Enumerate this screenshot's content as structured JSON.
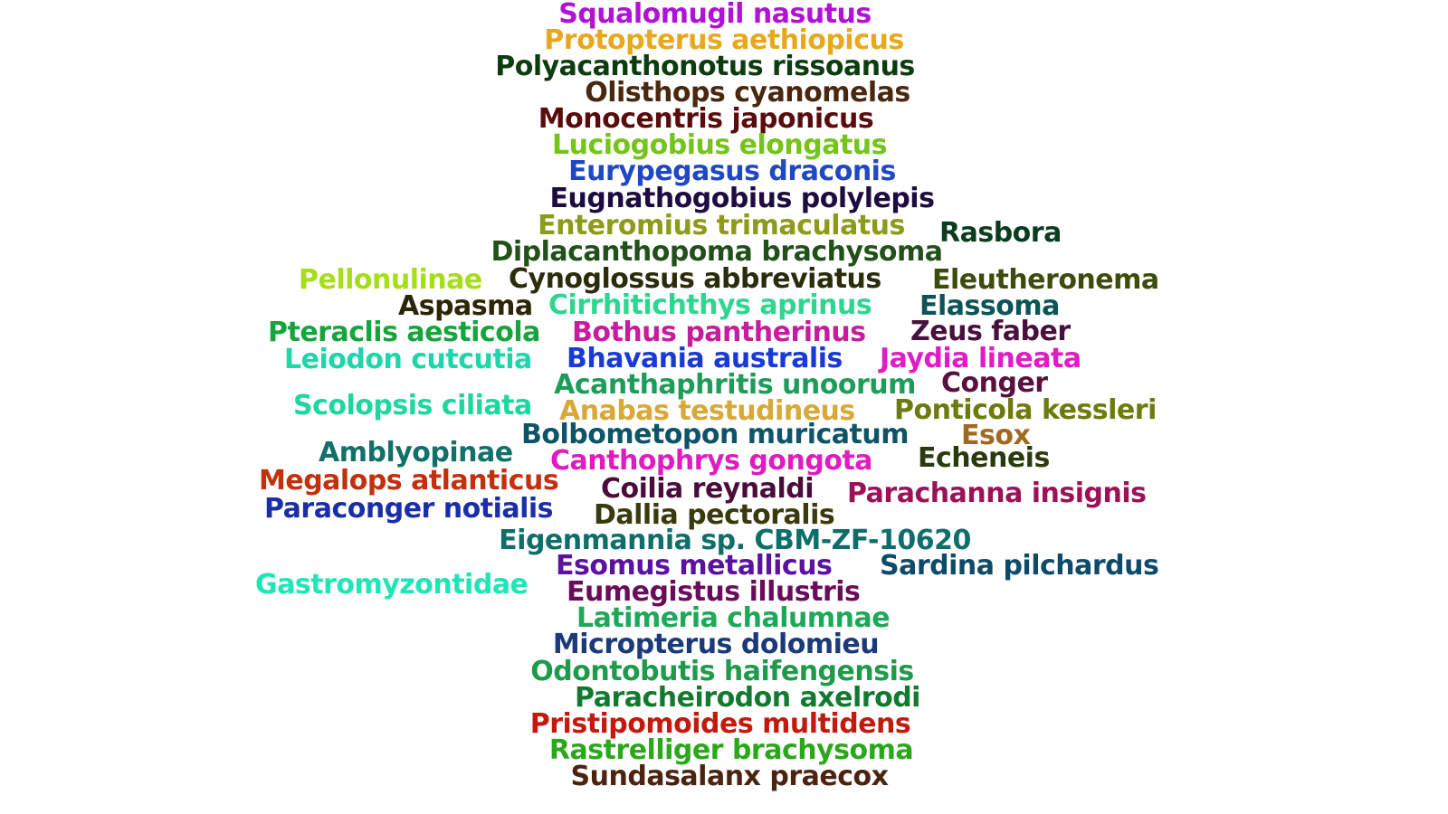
{
  "words": [
    {
      "text": "Squalomugil nasutus",
      "color": "#b012d6"
    },
    {
      "text": "Protopterus aethiopicus",
      "color": "#e8a81e"
    },
    {
      "text": "Polyacanthonotus rissoanus",
      "color": "#0b3d0e"
    },
    {
      "text": "Olisthops cyanomelas",
      "color": "#4a2810"
    },
    {
      "text": "Monocentris japonicus",
      "color": "#5a0c0c"
    },
    {
      "text": "Luciogobius elongatus",
      "color": "#74c41a"
    },
    {
      "text": "Eurypegasus draconis",
      "color": "#2048c2"
    },
    {
      "text": "Eugnathogobius polylepis",
      "color": "#1e0c40"
    },
    {
      "text": "Enteromius trimaculatus",
      "color": "#8e9a1a"
    },
    {
      "text": "Rasbora",
      "color": "#0a3c1e"
    },
    {
      "text": "Diplacanthopoma brachysoma",
      "color": "#22501a"
    },
    {
      "text": "Pellonulinae",
      "color": "#a6de1a"
    },
    {
      "text": "Cynoglossus abbreviatus",
      "color": "#2c2c0c"
    },
    {
      "text": "Eleutheronema",
      "color": "#3c4c0c"
    },
    {
      "text": "Aspasma",
      "color": "#2a2606"
    },
    {
      "text": "Cirrhitichthys aprinus",
      "color": "#2ed690"
    },
    {
      "text": "Elassoma",
      "color": "#0c5458"
    },
    {
      "text": "Pteraclis aesticola",
      "color": "#16a43c"
    },
    {
      "text": "Bothus pantherinus",
      "color": "#c61c9e"
    },
    {
      "text": "Zeus faber",
      "color": "#48103c"
    },
    {
      "text": "Leiodon cutcutia",
      "color": "#1ed6aa"
    },
    {
      "text": "Bhavania australis",
      "color": "#1a3ad6"
    },
    {
      "text": "Jaydia lineata",
      "color": "#e01cc6"
    },
    {
      "text": "Acanthaphritis unoorum",
      "color": "#1e9c5a"
    },
    {
      "text": "Conger",
      "color": "#5a1040"
    },
    {
      "text": "Scolopsis ciliata",
      "color": "#1ed6a0"
    },
    {
      "text": "Anabas testudineus",
      "color": "#d8a838"
    },
    {
      "text": "Ponticola kessleri",
      "color": "#6e7a0c"
    },
    {
      "text": "Bolbometopon muricatum",
      "color": "#0e5468"
    },
    {
      "text": "Esox",
      "color": "#a06a20"
    },
    {
      "text": "Amblyopinae",
      "color": "#127068"
    },
    {
      "text": "Canthophrys gongota",
      "color": "#e01cc0"
    },
    {
      "text": "Echeneis",
      "color": "#2a3a0c"
    },
    {
      "text": "Megalops atlanticus",
      "color": "#c4300e"
    },
    {
      "text": "Coilia reynaldi",
      "color": "#4a0c3a"
    },
    {
      "text": "Parachanna insignis",
      "color": "#9c1258"
    },
    {
      "text": "Paraconger notialis",
      "color": "#1a2ea8"
    },
    {
      "text": "Dallia pectoralis",
      "color": "#3a3a0c"
    },
    {
      "text": "Eigenmannia sp. CBM-ZF-10620",
      "color": "#0e6e6a"
    },
    {
      "text": "Esomus metallicus",
      "color": "#5a12a0"
    },
    {
      "text": "Sardina pilchardus",
      "color": "#0e4a6a"
    },
    {
      "text": "Gastromyzontidae",
      "color": "#1ee6b6"
    },
    {
      "text": "Eumegistus illustris",
      "color": "#6a0c5a"
    },
    {
      "text": "Latimeria chalumnae",
      "color": "#1ea85a"
    },
    {
      "text": "Micropterus dolomieu",
      "color": "#1a3a7a"
    },
    {
      "text": "Odontobutis haifengensis",
      "color": "#1e9a4a"
    },
    {
      "text": "Paracheirodon axelrodi",
      "color": "#127a30"
    },
    {
      "text": "Pristipomoides multidens",
      "color": "#c41a0e"
    },
    {
      "text": "Rastrelliger brachysoma",
      "color": "#2aa81a"
    },
    {
      "text": "Sundasalanx praecox",
      "color": "#4a2410"
    }
  ]
}
